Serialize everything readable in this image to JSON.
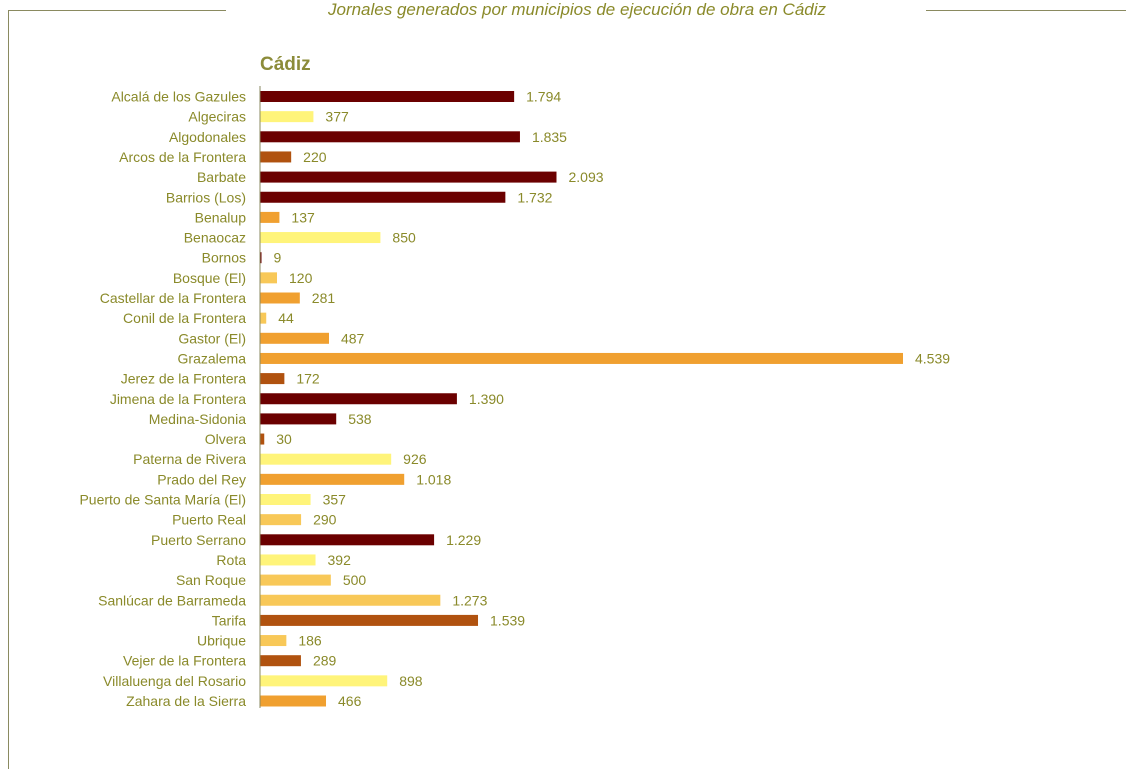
{
  "figure": {
    "title": "Jornales generados por municipios de ejecución de obra en Cádiz"
  },
  "colors": {
    "dark_red": "#6b0000",
    "brown": "#b0520f",
    "orange": "#f0a030",
    "light_yellow": "#fff47a",
    "pale_orange": "#f8c858",
    "label_text": "#8a8a2a",
    "title_text": "#8c8c3a",
    "axis": "#8a8a60"
  },
  "chart_data": {
    "type": "bar",
    "orientation": "horizontal",
    "title": "Cádiz",
    "xlabel": "",
    "ylabel": "",
    "xlim": [
      0,
      4539
    ],
    "grid": false,
    "legend": "none",
    "categories": [
      "Alcalá de los Gazules",
      "Algeciras",
      "Algodonales",
      "Arcos de la Frontera",
      "Barbate",
      "Barrios (Los)",
      "Benalup",
      "Benaocaz",
      "Bornos",
      "Bosque (El)",
      "Castellar de la Frontera",
      "Conil de la Frontera",
      "Gastor (El)",
      "Grazalema",
      "Jerez de la Frontera",
      "Jimena de la Frontera",
      "Medina-Sidonia",
      "Olvera",
      "Paterna de Rivera",
      "Prado del Rey",
      "Puerto de Santa María (El)",
      "Puerto Real",
      "Puerto Serrano",
      "Rota",
      "San Roque",
      "Sanlúcar de Barrameda",
      "Tarifa",
      "Ubrique",
      "Vejer de la Frontera",
      "Villaluenga del Rosario",
      "Zahara de la Sierra"
    ],
    "values": [
      1794,
      377,
      1835,
      220,
      2093,
      1732,
      137,
      850,
      9,
      120,
      281,
      44,
      487,
      4539,
      172,
      1390,
      538,
      30,
      926,
      1018,
      357,
      290,
      1229,
      392,
      500,
      1273,
      1539,
      186,
      289,
      898,
      466
    ],
    "value_labels": [
      "1.794",
      "377",
      "1.835",
      "220",
      "2.093",
      "1.732",
      "137",
      "850",
      "9",
      "120",
      "281",
      "44",
      "487",
      "4.539",
      "172",
      "1.390",
      "538",
      "30",
      "926",
      "1.018",
      "357",
      "290",
      "1.229",
      "392",
      "500",
      "1.273",
      "1.539",
      "186",
      "289",
      "898",
      "466"
    ],
    "bar_colors": [
      "#6b0000",
      "#fff47a",
      "#6b0000",
      "#b0520f",
      "#6b0000",
      "#6b0000",
      "#f0a030",
      "#fff47a",
      "#6b0000",
      "#f8c858",
      "#f0a030",
      "#f8c858",
      "#f0a030",
      "#f0a030",
      "#b0520f",
      "#6b0000",
      "#6b0000",
      "#b0520f",
      "#fff47a",
      "#f0a030",
      "#fff47a",
      "#f8c858",
      "#6b0000",
      "#fff47a",
      "#f8c858",
      "#f8c858",
      "#b0520f",
      "#f8c858",
      "#b0520f",
      "#fff47a",
      "#f0a030"
    ]
  }
}
